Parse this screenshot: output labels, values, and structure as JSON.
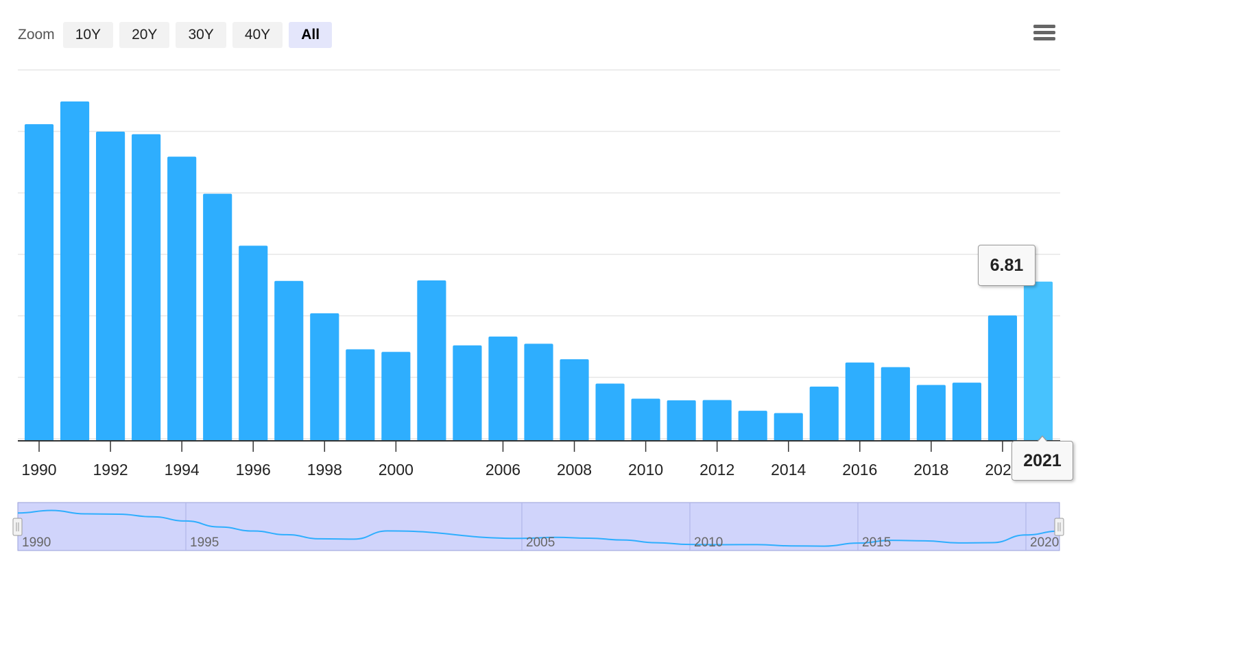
{
  "toolbar": {
    "zoom_label": "Zoom",
    "buttons": [
      "10Y",
      "20Y",
      "30Y",
      "40Y",
      "All"
    ],
    "active": "All"
  },
  "colors": {
    "bar": "#2eaefe",
    "bar_hover": "#47c2fe",
    "navigator_fill": "#d0d4fb",
    "navigator_line": "#2eaefe"
  },
  "chart_data": {
    "type": "bar",
    "categories": [
      "1990",
      "1991",
      "1992",
      "1993",
      "1994",
      "1995",
      "1996",
      "1997",
      "1998",
      "1999",
      "2000",
      "2001",
      "2005",
      "2006",
      "2007",
      "2008",
      "2009",
      "2010",
      "2011",
      "2012",
      "2013",
      "2014",
      "2015",
      "2016",
      "2017",
      "2018",
      "2019",
      "2020",
      "2021"
    ],
    "values": [
      13.6,
      14.58,
      13.28,
      13.17,
      12.2,
      10.6,
      8.36,
      6.84,
      5.44,
      3.89,
      3.78,
      6.86,
      4.06,
      4.44,
      4.13,
      3.46,
      2.41,
      1.76,
      1.69,
      1.7,
      1.24,
      1.14,
      2.28,
      3.32,
      3.12,
      2.35,
      2.45,
      5.35,
      6.81
    ],
    "x_tick_labels": [
      "1990",
      "1992",
      "1994",
      "1996",
      "1998",
      "2000",
      "2006",
      "2008",
      "2010",
      "2012",
      "2014",
      "2016",
      "2018",
      "2020"
    ],
    "ylim": [
      0,
      16
    ],
    "grid": true,
    "highlighted": {
      "category": "2021",
      "value": "6.81"
    },
    "navigator": {
      "labels": [
        "1990",
        "1995",
        "2005",
        "2010",
        "2015",
        "2020"
      ]
    }
  }
}
